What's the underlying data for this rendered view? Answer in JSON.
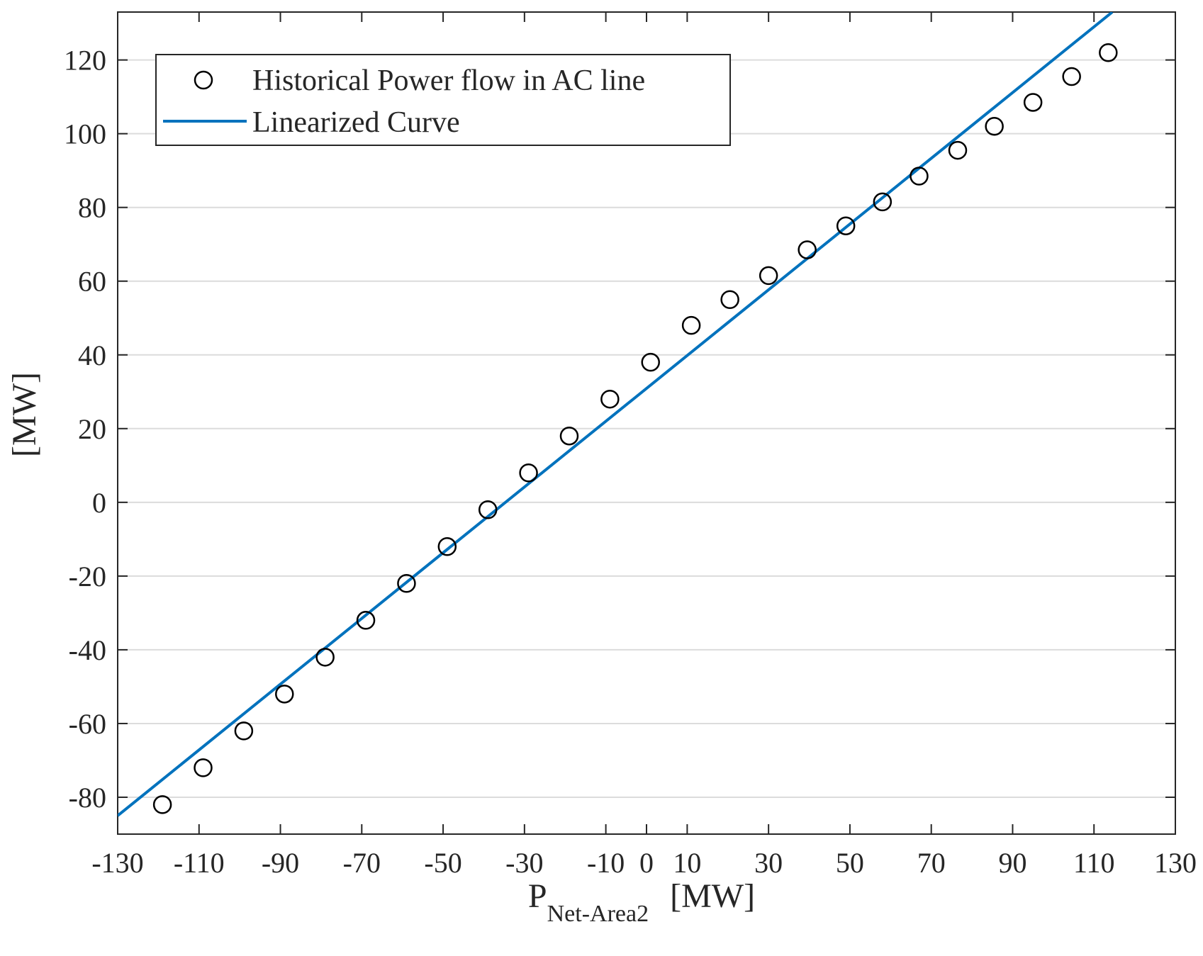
{
  "chart_data": {
    "type": "scatter",
    "title": "",
    "xlabel_main": "P",
    "xlabel_sub": "Net-Area2",
    "xlabel_unit": "[MW]",
    "ylabel": "[MW]",
    "xlim": [
      -130,
      130
    ],
    "ylim": [
      -90,
      133
    ],
    "xticks": [
      -130,
      -110,
      -90,
      -70,
      -50,
      -30,
      -10,
      0,
      10,
      30,
      50,
      70,
      90,
      110,
      130
    ],
    "xtick_labels": [
      "-130",
      "-110",
      "-90",
      "-70",
      "-50",
      "-30",
      "-10",
      "0",
      "10",
      "30",
      "50",
      "70",
      "90",
      "110",
      "130"
    ],
    "yticks": [
      -80,
      -60,
      -40,
      -20,
      0,
      20,
      40,
      60,
      80,
      100,
      120
    ],
    "ytick_labels": [
      "-80",
      "-60",
      "-40",
      "-20",
      "0",
      "20",
      "40",
      "60",
      "80",
      "100",
      "120"
    ],
    "grid": "horizontal",
    "legend_position": "top-left",
    "series": [
      {
        "name": "Historical Power flow in AC line",
        "kind": "markers",
        "marker": "circle",
        "color": "#000000",
        "x": [
          -119,
          -109,
          -99,
          -89,
          -79,
          -69,
          -59,
          -49,
          -39,
          -29,
          -19,
          -9,
          1,
          11,
          20.5,
          30,
          39.5,
          49,
          58,
          67,
          76.5,
          85.5,
          95,
          104.5,
          113.5
        ],
        "y": [
          -82,
          -72,
          -62,
          -52,
          -42,
          -32,
          -22,
          -12,
          -2,
          8,
          18,
          28,
          38,
          48,
          55,
          61.5,
          68.5,
          75,
          81.5,
          88.5,
          95.5,
          102,
          108.5,
          115.5,
          122
        ]
      },
      {
        "name": "Linearized Curve",
        "kind": "line",
        "color": "#0072BD",
        "x": [
          -130,
          114.5
        ],
        "y": [
          -85,
          133
        ]
      }
    ]
  }
}
